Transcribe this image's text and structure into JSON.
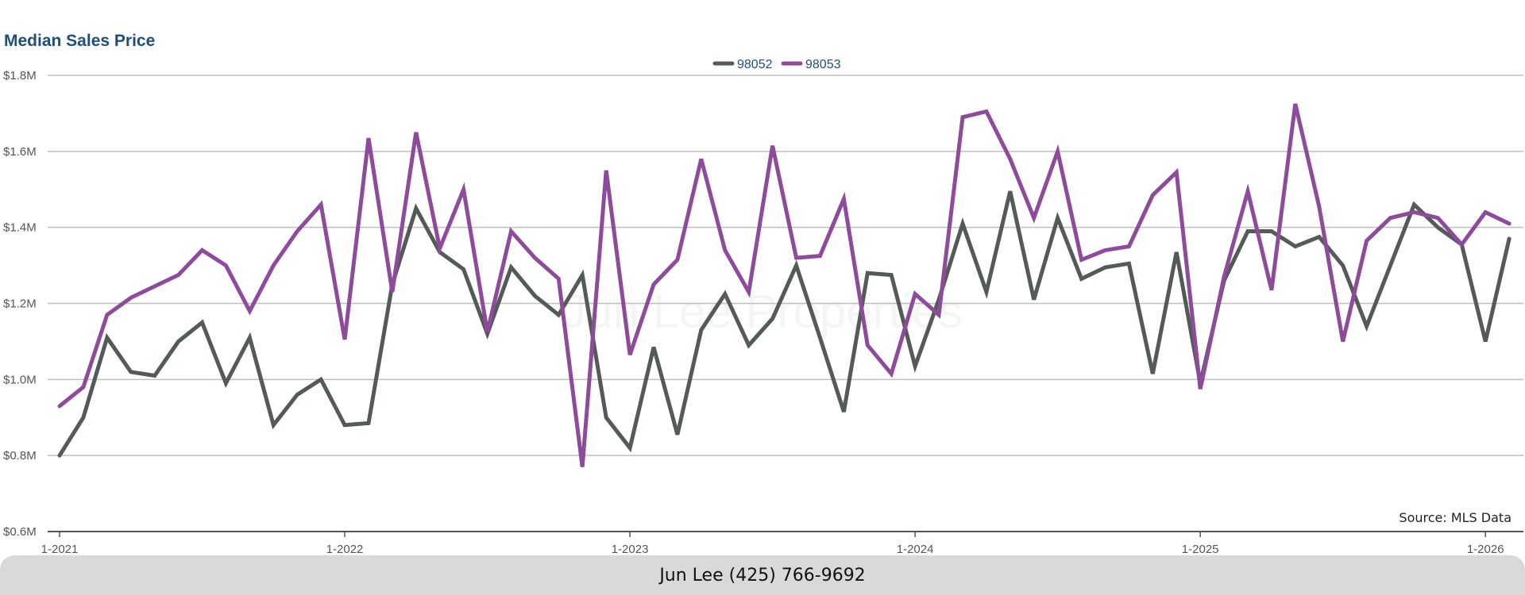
{
  "title": "Median Sales Price",
  "source": "Source: MLS Data",
  "watermark": "Jun Lee Properties",
  "footer": {
    "contact": "Jun Lee (425) 766-9692"
  },
  "colors": {
    "s98052": "#545a58",
    "s98053": "#8e4a9b",
    "grid": "#bfbfbf",
    "axis": "#555555"
  },
  "chart_data": {
    "type": "line",
    "title": "Median Sales Price",
    "ylim": [
      0.6,
      1.8
    ],
    "y_ticks": [
      {
        "value": 0.6,
        "label": "$0.6M"
      },
      {
        "value": 0.8,
        "label": "$0.8M"
      },
      {
        "value": 1.0,
        "label": "$1.0M"
      },
      {
        "value": 1.2,
        "label": "$1.2M"
      },
      {
        "value": 1.4,
        "label": "$1.4M"
      },
      {
        "value": 1.6,
        "label": "$1.6M"
      },
      {
        "value": 1.8,
        "label": "$1.8M"
      }
    ],
    "x_ticks": [
      "1-2021",
      "1-2022",
      "1-2023",
      "1-2024",
      "1-2025",
      "1-2026"
    ],
    "x_start": "1-2021",
    "grid": true,
    "legend": "top-center",
    "series": [
      {
        "name": "98052",
        "values": [
          0.8,
          0.9,
          1.11,
          1.02,
          1.01,
          1.1,
          1.15,
          0.99,
          1.11,
          0.88,
          0.96,
          1.0,
          0.88,
          0.885,
          1.25,
          1.45,
          1.335,
          1.29,
          1.12,
          1.295,
          1.22,
          1.17,
          1.275,
          0.9,
          0.82,
          1.085,
          0.855,
          1.13,
          1.225,
          1.09,
          1.16,
          1.3,
          1.11,
          0.915,
          1.28,
          1.275,
          1.035,
          1.21,
          1.41,
          1.23,
          1.495,
          1.21,
          1.425,
          1.265,
          1.295,
          1.305,
          1.015,
          1.335,
          0.99,
          1.26,
          1.39,
          1.39,
          1.35,
          1.375,
          1.3,
          1.14,
          1.3,
          1.46,
          1.4,
          1.355,
          1.1,
          1.37
        ]
      },
      {
        "name": "98053",
        "values": [
          0.93,
          0.98,
          1.17,
          1.215,
          1.245,
          1.275,
          1.34,
          1.3,
          1.18,
          1.3,
          1.39,
          1.46,
          1.105,
          1.635,
          1.23,
          1.65,
          1.345,
          1.5,
          1.125,
          1.39,
          1.32,
          1.265,
          0.77,
          1.55,
          1.065,
          1.25,
          1.315,
          1.58,
          1.34,
          1.23,
          1.615,
          1.32,
          1.325,
          1.475,
          1.09,
          1.015,
          1.225,
          1.17,
          1.69,
          1.705,
          1.58,
          1.425,
          1.6,
          1.315,
          1.34,
          1.35,
          1.485,
          1.545,
          0.975,
          1.27,
          1.495,
          1.235,
          1.725,
          1.455,
          1.1,
          1.365,
          1.425,
          1.44,
          1.425,
          1.355,
          1.44,
          1.41
        ]
      }
    ]
  }
}
